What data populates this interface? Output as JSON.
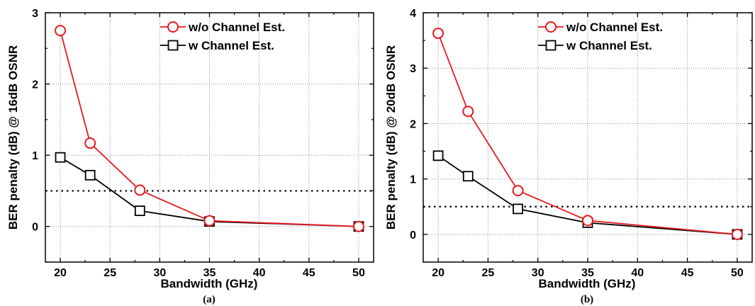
{
  "chart_data": [
    {
      "type": "line",
      "panel_label": "(a)",
      "xlabel": "Bandwidth (GHz)",
      "ylabel": "BER penalty (dB)  @ 16dB OSNR",
      "xlim": [
        18.5,
        51.5
      ],
      "ylim": [
        -0.5,
        3
      ],
      "xticks": [
        20,
        25,
        30,
        35,
        40,
        45,
        50
      ],
      "yticks": [
        0,
        1,
        2,
        3
      ],
      "grid": true,
      "legend_position": "top-right",
      "threshold": 0.5,
      "x": [
        20,
        23,
        28,
        35,
        50
      ],
      "series": [
        {
          "name": "w/o Channel Est.",
          "color": "#e8191e",
          "marker": "circle",
          "values": [
            2.75,
            1.17,
            0.51,
            0.08,
            0.0
          ]
        },
        {
          "name": "w Channel Est.",
          "color": "#000000",
          "marker": "square",
          "values": [
            0.97,
            0.72,
            0.22,
            0.07,
            0.0
          ]
        }
      ]
    },
    {
      "type": "line",
      "panel_label": "(b)",
      "xlabel": "Bandwidth (GHz)",
      "ylabel": "BER penalty (dB)  @ 20dB OSNR",
      "xlim": [
        18.5,
        51.5
      ],
      "ylim": [
        -0.5,
        4
      ],
      "xticks": [
        20,
        25,
        30,
        35,
        40,
        45,
        50
      ],
      "yticks": [
        0,
        1,
        2,
        3,
        4
      ],
      "grid": true,
      "legend_position": "top-right",
      "threshold": 0.5,
      "x": [
        20,
        23,
        28,
        35,
        50
      ],
      "series": [
        {
          "name": "w/o Channel Est.",
          "color": "#e8191e",
          "marker": "circle",
          "values": [
            3.63,
            2.22,
            0.79,
            0.25,
            0.0
          ]
        },
        {
          "name": "w Channel Est.",
          "color": "#000000",
          "marker": "square",
          "values": [
            1.42,
            1.05,
            0.46,
            0.21,
            0.0
          ]
        }
      ]
    }
  ]
}
